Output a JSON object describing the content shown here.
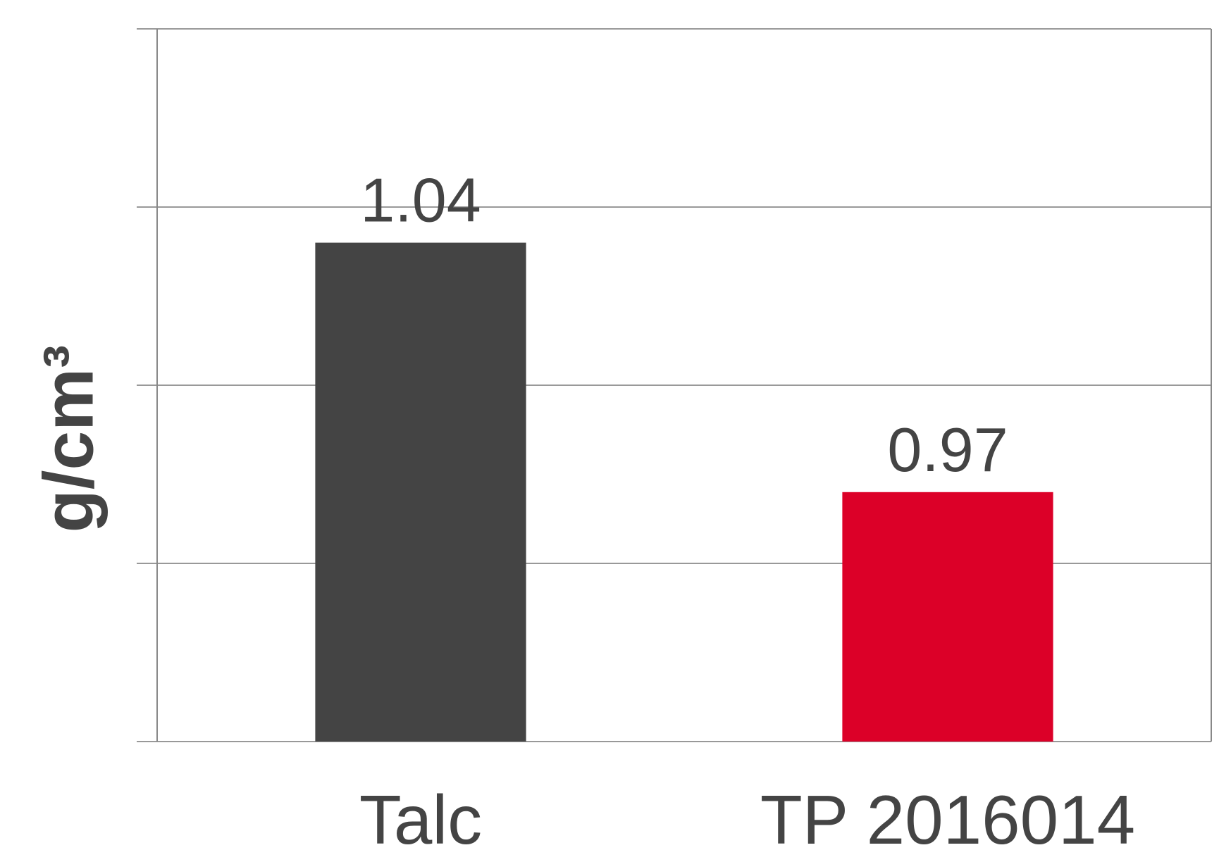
{
  "chart_data": {
    "type": "bar",
    "y_label": "g/cm³",
    "categories": [
      "Talc",
      "TP 2016014"
    ],
    "values": [
      1.04,
      0.97
    ],
    "colors": [
      "#444444",
      "#dc0028"
    ],
    "ylim": [
      0.9,
      1.1
    ],
    "yticks": [
      0.9,
      0.95,
      1.0,
      1.05,
      1.1
    ],
    "grid": true
  }
}
